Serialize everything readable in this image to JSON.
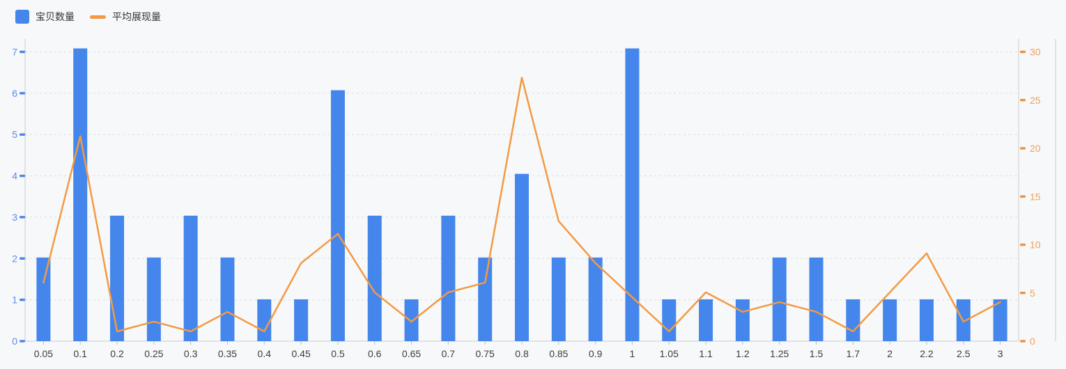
{
  "legend": {
    "items": [
      {
        "label": "宝贝数量",
        "swatch": "bar-square"
      },
      {
        "label": "平均展现量",
        "swatch": "line-dash"
      }
    ]
  },
  "chart_data": {
    "type": "bar",
    "subtype": "bar+line dual-axis combo",
    "title": "",
    "xlabel": "",
    "ylabel_left": "",
    "ylabel_right": "",
    "legend_position": "top-left",
    "grid": "horizontal dashed gridlines",
    "categories": [
      "0.05",
      "0.1",
      "0.2",
      "0.25",
      "0.3",
      "0.35",
      "0.4",
      "0.45",
      "0.5",
      "0.6",
      "0.65",
      "0.7",
      "0.75",
      "0.8",
      "0.85",
      "0.9",
      "1",
      "1.05",
      "1.1",
      "1.2",
      "1.25",
      "1.5",
      "1.7",
      "2",
      "2.2",
      "2.5",
      "3"
    ],
    "series": [
      {
        "name": "宝贝数量",
        "type": "bar",
        "y_axis": "left",
        "color": "#4486ec",
        "values": [
          2,
          7,
          3,
          2,
          3,
          2,
          1,
          1,
          6,
          3,
          1,
          3,
          2,
          4,
          2,
          2,
          7,
          1,
          1,
          1,
          2,
          2,
          1,
          1,
          1,
          1,
          1
        ]
      },
      {
        "name": "平均展现量",
        "type": "line",
        "y_axis": "right",
        "color": "#f39a43",
        "values": [
          6,
          21,
          1,
          2,
          1,
          3,
          1,
          8,
          11,
          5,
          2,
          5,
          6,
          27,
          12.3,
          8,
          4.5,
          1,
          5,
          3,
          4,
          3,
          1,
          5,
          9,
          2,
          4
        ]
      }
    ],
    "left_axis": {
      "min": 0,
      "max": 7,
      "ticks": [
        "0",
        "1",
        "2",
        "3",
        "4",
        "5",
        "6",
        "7"
      ],
      "label_color": "#5d8ae8",
      "tick_color": "#4d86e9"
    },
    "right_axis": {
      "min": 0,
      "max": 30,
      "ticks": [
        "0",
        "5",
        "10",
        "15",
        "20",
        "25",
        "30"
      ],
      "label_color": "#f0a05a",
      "tick_color": "#ef9335"
    }
  },
  "colors": {
    "background": "#f7f8f9",
    "bar": "#4486ec",
    "line": "#f39a43",
    "gridline": "#dcdcdc",
    "axis_line": "#c9ccd1",
    "x_tick": "#bbbbbb",
    "x_label": "#3c3c3c",
    "legend_text": "#333333"
  }
}
